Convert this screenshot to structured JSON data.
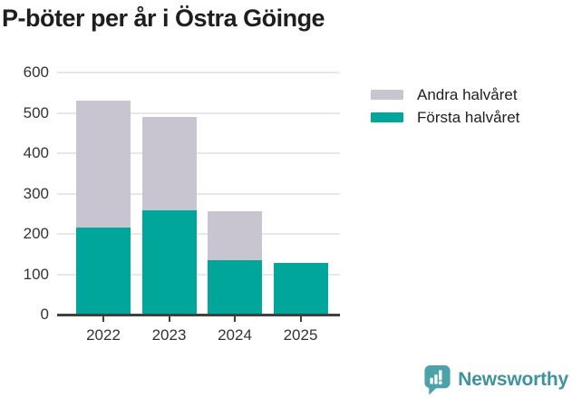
{
  "title": "P-böter per år i Östra Göinge",
  "chart_data": {
    "type": "bar",
    "stacked": true,
    "title": "P-böter per år i Östra Göinge",
    "categories": [
      "2022",
      "2023",
      "2024",
      "2025"
    ],
    "series": [
      {
        "name": "Första halvåret",
        "color": "#00a69a",
        "values": [
          215,
          258,
          135,
          129
        ]
      },
      {
        "name": "Andra halvåret",
        "color": "#c8c5d0",
        "values": [
          315,
          232,
          121,
          0
        ]
      }
    ],
    "totals": [
      530,
      490,
      256,
      129
    ],
    "legend_order": [
      "Andra halvåret",
      "Första halvåret"
    ],
    "legend_position": "right",
    "xlabel": "",
    "ylabel": "",
    "ylim": [
      0,
      600
    ],
    "yticks": [
      0,
      100,
      200,
      300,
      400,
      500,
      600
    ],
    "grid": true,
    "grid_color": "#e8e8e8",
    "axis_color": "#404040"
  },
  "branding": {
    "text": "Newsworthy",
    "icon": "bar-chart-speech-bubble-icon",
    "icon_color": "#4ba3a9",
    "text_color": "#3f939b"
  }
}
